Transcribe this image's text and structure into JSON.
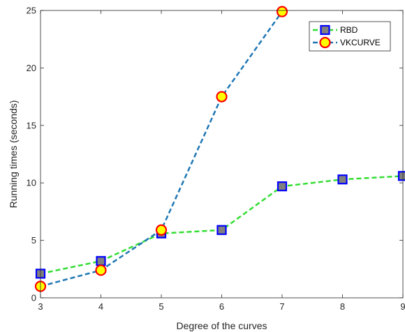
{
  "chart_data": {
    "type": "line",
    "xlabel": "Degree of the curves",
    "ylabel": "Running times (seconds)",
    "xlim": [
      3,
      9
    ],
    "ylim": [
      0,
      25
    ],
    "xticks": [
      3,
      4,
      5,
      6,
      7,
      8,
      9
    ],
    "yticks": [
      0,
      5,
      10,
      15,
      20,
      25
    ],
    "grid": false,
    "legend_position": "top-right",
    "series": [
      {
        "name": "RBD",
        "x": [
          3,
          4,
          5,
          6,
          7,
          8,
          9
        ],
        "values": [
          2.1,
          3.2,
          5.6,
          5.9,
          9.7,
          10.3,
          10.6
        ],
        "color": "#33dd33",
        "line_style": "dashed",
        "marker": "square",
        "marker_face": "#808080",
        "marker_edge": "#0000ff"
      },
      {
        "name": "VKCURVE",
        "x": [
          3,
          4,
          5,
          6,
          7
        ],
        "values": [
          1.0,
          2.4,
          5.9,
          17.5,
          24.9
        ],
        "color": "#1f77b4",
        "line_style": "dashed",
        "marker": "circle",
        "marker_face": "#ffff00",
        "marker_edge": "#ff0000"
      }
    ]
  }
}
